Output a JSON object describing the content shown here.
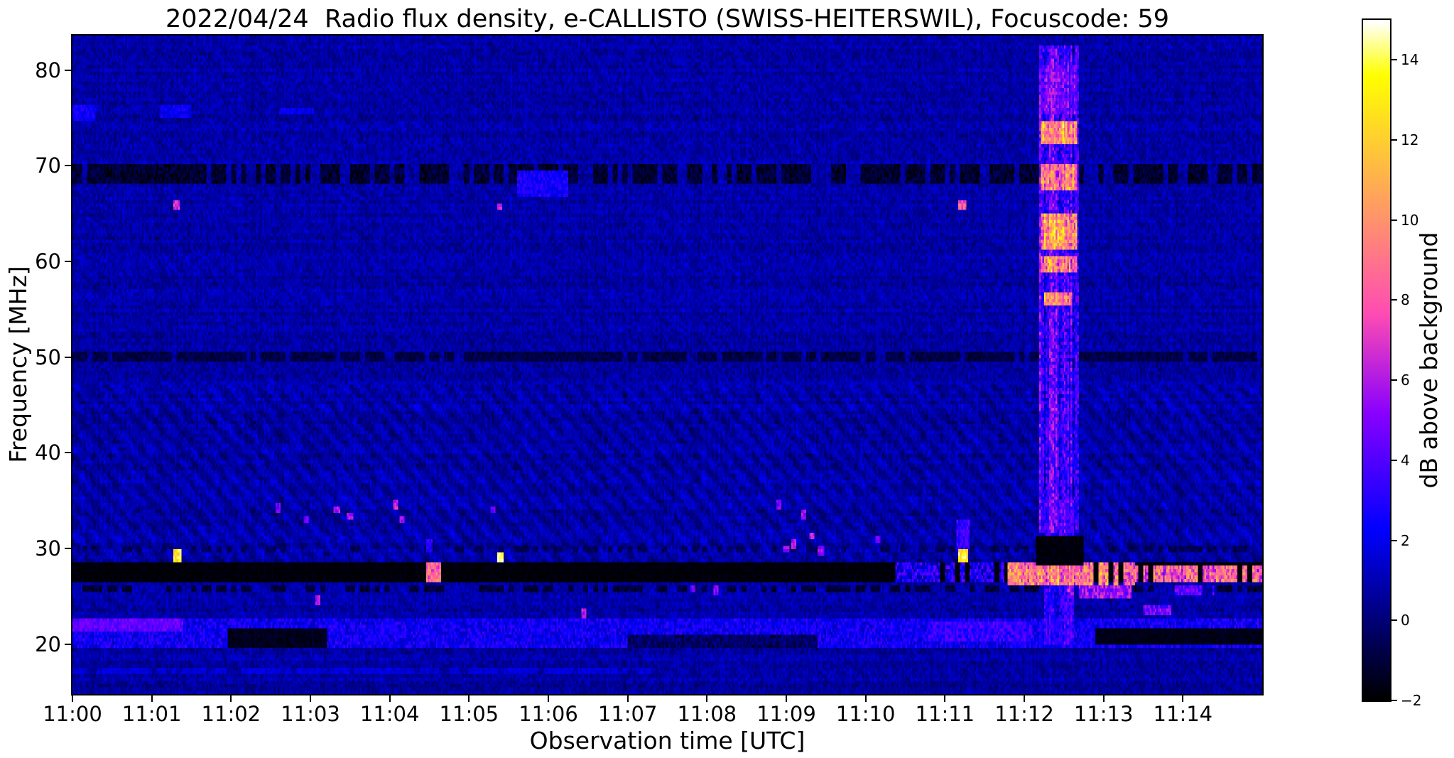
{
  "chart_data": {
    "type": "heatmap",
    "title": "2022/04/24  Radio flux density, e-CALLISTO (SWISS-HEITERSWIL), Focuscode: 59",
    "xlabel": "Observation time [UTC]",
    "ylabel": "Frequency [MHz]",
    "colorbar_label": "dB above background",
    "colormap": "gnuplot2",
    "x_range_minutes": [
      0,
      15
    ],
    "x_ticks": [
      "11:00",
      "11:01",
      "11:02",
      "11:03",
      "11:04",
      "11:05",
      "11:06",
      "11:07",
      "11:08",
      "11:09",
      "11:10",
      "11:11",
      "11:12",
      "11:13",
      "11:14"
    ],
    "y_range_mhz": [
      14.8,
      83.6
    ],
    "y_ticks": [
      80,
      70,
      60,
      50,
      40,
      30,
      20
    ],
    "value_range_db": [
      -2,
      15
    ],
    "colorbar_ticks": [
      {
        "value": 14,
        "label": "14"
      },
      {
        "value": 12,
        "label": "12"
      },
      {
        "value": 10,
        "label": "10"
      },
      {
        "value": 8,
        "label": "8"
      },
      {
        "value": 6,
        "label": "6"
      },
      {
        "value": 4,
        "label": "4"
      },
      {
        "value": 2,
        "label": "2"
      },
      {
        "value": 0,
        "label": "0"
      },
      {
        "value": -2,
        "label": "−2"
      }
    ],
    "grid": false,
    "background": {
      "base": 0.75,
      "noise": 1.4,
      "col_noise": 0.4,
      "row_noise": 0.5,
      "mottle": 0.45
    },
    "features": [
      {
        "name": "rfi-band-69MHz",
        "t0": 0,
        "t1": 15,
        "f0": 68.1,
        "f1": 70.3,
        "v": -1.2,
        "jitter": 0.9,
        "duty": 0.72
      },
      {
        "name": "rfi-band-50MHz",
        "t0": 0,
        "t1": 15,
        "f0": 49.5,
        "f1": 50.5,
        "v": -0.8,
        "jitter": 0.6,
        "duty": 0.8
      },
      {
        "name": "rfi-row-30MHz",
        "t0": 0,
        "t1": 15,
        "f0": 29.6,
        "f1": 30.4,
        "v": -0.5,
        "jitter": 0.6,
        "duty": 0.4
      },
      {
        "name": "rfi-row-26MHz",
        "t0": 0,
        "t1": 15,
        "f0": 25.3,
        "f1": 26.2,
        "v": -1.0,
        "jitter": 0.6,
        "duty": 0.5
      },
      {
        "name": "absorption-band-27MHz",
        "t0": 0,
        "t1": 15,
        "f0": 26.4,
        "f1": 28.6,
        "v": -1.85,
        "jitter": 0.2
      },
      {
        "name": "band-20-22MHz",
        "t0": 0,
        "t1": 15,
        "f0": 19.6,
        "f1": 22.6,
        "v": 2.3,
        "jitter": 1.3
      },
      {
        "name": "purple-patch-22MHz",
        "t0": 0,
        "t1": 1.4,
        "f0": 21.3,
        "f1": 22.7,
        "v": 4.3,
        "jitter": 1.0
      },
      {
        "t0": 1.95,
        "t1": 3.2,
        "f0": 19.6,
        "f1": 21.7,
        "v": -1.5,
        "jitter": 0.4
      },
      {
        "t0": 7.0,
        "t1": 9.4,
        "f0": 19.6,
        "f1": 20.9,
        "v": -0.3,
        "jitter": 1.0
      },
      {
        "t0": 10.8,
        "t1": 12.1,
        "f0": 20.2,
        "f1": 22.4,
        "v": 3.4,
        "jitter": 1.2
      },
      {
        "t0": 12.9,
        "t1": 15,
        "f0": 19.8,
        "f1": 21.7,
        "v": -1.6,
        "jitter": 0.3
      },
      {
        "name": "line-17MHz",
        "t0": 0,
        "t1": 7.3,
        "f0": 16.8,
        "f1": 17.4,
        "v": 1.6,
        "jitter": 0.5,
        "duty": 0.85
      },
      {
        "t0": 10.35,
        "t1": 11.8,
        "f0": 26.4,
        "f1": 28.5,
        "v": 2.5,
        "jitter": 2.2,
        "duty": 0.65
      },
      {
        "name": "bright-27MHz-late",
        "t0": 11.8,
        "t1": 13.4,
        "f0": 26.3,
        "f1": 28.5,
        "v": 9.0,
        "jitter": 2.6,
        "duty": 0.92,
        "colJitter": 1.5
      },
      {
        "t0": 13.4,
        "t1": 15,
        "f0": 26.4,
        "f1": 28.3,
        "v": 8.0,
        "jitter": 2.6,
        "duty": 0.8,
        "colJitter": 1.5
      },
      {
        "t0": 12.55,
        "t1": 13.35,
        "f0": 24.7,
        "f1": 26.3,
        "v": 5.5,
        "jitter": 1.8,
        "duty": 0.8
      },
      {
        "t0": 13.9,
        "t1": 14.4,
        "f0": 25.0,
        "f1": 26.3,
        "v": 4.0,
        "jitter": 1.5,
        "duty": 0.6
      },
      {
        "t0": 13.45,
        "t1": 13.85,
        "f0": 23.0,
        "f1": 24.2,
        "v": 4.5,
        "jitter": 1.5,
        "duty": 0.6
      },
      {
        "name": "radio-burst-fill",
        "t0": 12.18,
        "t1": 12.68,
        "f0": 31.5,
        "f1": 82.5,
        "v": 3.2,
        "jitter": 2.0,
        "colJitter": 1.8,
        "mode": "max"
      },
      {
        "t0": 12.2,
        "t1": 12.66,
        "f0": 75.5,
        "f1": 80.6,
        "v": 4.2,
        "jitter": 1.6,
        "colJitter": 1.5,
        "mode": "max"
      },
      {
        "t0": 12.2,
        "t1": 12.66,
        "f0": 72.4,
        "f1": 74.6,
        "v": 10.5,
        "jitter": 2.4,
        "colJitter": 2.0,
        "mode": "max"
      },
      {
        "t0": 12.2,
        "t1": 12.66,
        "f0": 67.5,
        "f1": 70.3,
        "v": 9.0,
        "jitter": 2.6,
        "colJitter": 2.0,
        "mode": "max"
      },
      {
        "t0": 12.2,
        "t1": 12.66,
        "f0": 61.2,
        "f1": 64.9,
        "v": 10.0,
        "jitter": 2.6,
        "colJitter": 2.2,
        "mode": "max"
      },
      {
        "t0": 12.2,
        "t1": 12.66,
        "f0": 58.8,
        "f1": 60.7,
        "v": 9.0,
        "jitter": 2.4,
        "colJitter": 2.0,
        "mode": "max"
      },
      {
        "t0": 12.25,
        "t1": 12.6,
        "f0": 55.3,
        "f1": 56.7,
        "v": 9.5,
        "jitter": 2.2,
        "colJitter": 1.8,
        "mode": "max"
      },
      {
        "t0": 12.25,
        "t1": 12.62,
        "f0": 31.3,
        "f1": 35.0,
        "v": 3.6,
        "jitter": 1.4,
        "colJitter": 1.2,
        "mode": "max"
      },
      {
        "t0": 12.25,
        "t1": 12.62,
        "f0": 19.8,
        "f1": 26.4,
        "v": 3.0,
        "jitter": 1.5,
        "colJitter": 1.2,
        "mode": "max"
      },
      {
        "name": "burst-absorption-29MHz",
        "t0": 12.15,
        "t1": 12.75,
        "f0": 28.3,
        "f1": 31.3,
        "v": -1.8,
        "jitter": 0.3
      },
      {
        "t0": 1.27,
        "t1": 1.38,
        "f0": 28.6,
        "f1": 29.9,
        "v": 13.0,
        "jitter": 1.5
      },
      {
        "t0": 1.27,
        "t1": 1.36,
        "f0": 65.2,
        "f1": 66.3,
        "v": 7.0,
        "jitter": 1.5
      },
      {
        "t0": 5.35,
        "t1": 5.43,
        "f0": 28.5,
        "f1": 29.7,
        "v": 14.5,
        "jitter": 0.8
      },
      {
        "t0": 5.35,
        "t1": 5.42,
        "f0": 65.4,
        "f1": 66.1,
        "v": 6.0,
        "jitter": 1.2
      },
      {
        "t0": 11.17,
        "t1": 11.3,
        "f0": 28.5,
        "f1": 30.1,
        "v": 13.0,
        "jitter": 1.8
      },
      {
        "t0": 11.17,
        "t1": 11.28,
        "f0": 65.2,
        "f1": 66.5,
        "v": 8.0,
        "jitter": 1.8
      },
      {
        "t0": 11.15,
        "t1": 11.32,
        "f0": 30.1,
        "f1": 33.0,
        "v": 3.5,
        "jitter": 1.2,
        "mode": "max"
      },
      {
        "t0": 4.46,
        "t1": 4.64,
        "f0": 26.5,
        "f1": 28.4,
        "v": 8.5,
        "jitter": 2.0
      },
      {
        "t0": 4.45,
        "t1": 4.55,
        "f0": 29.5,
        "f1": 31.0,
        "v": 3.0,
        "jitter": 1.0,
        "mode": "max"
      },
      {
        "t0": 0,
        "t1": 0.3,
        "f0": 74.6,
        "f1": 76.4,
        "v": 2.4,
        "jitter": 0.8,
        "mode": "max"
      },
      {
        "t0": 1.1,
        "t1": 1.5,
        "f0": 75.0,
        "f1": 76.3,
        "v": 2.2,
        "jitter": 0.8,
        "mode": "max"
      },
      {
        "t0": 2.6,
        "t1": 3.05,
        "f0": 75.3,
        "f1": 76.2,
        "v": 2.0,
        "jitter": 0.7,
        "mode": "max"
      },
      {
        "t0": 5.6,
        "t1": 6.25,
        "f0": 66.8,
        "f1": 69.5,
        "v": 2.6,
        "jitter": 1.0,
        "mode": "max"
      }
    ],
    "dots": [
      [
        3.33,
        34.0,
        6
      ],
      [
        3.5,
        33.4,
        5.5
      ],
      [
        4.07,
        34.6,
        6.5
      ],
      [
        4.15,
        33.0,
        5.5
      ],
      [
        8.12,
        25.6,
        5
      ],
      [
        9.1,
        30.4,
        6
      ],
      [
        9.22,
        33.6,
        5.5
      ],
      [
        9.32,
        31.3,
        6.5
      ],
      [
        9.44,
        29.7,
        5.5
      ],
      [
        6.45,
        23.3,
        6
      ],
      [
        3.1,
        24.7,
        6
      ],
      [
        7.82,
        25.8,
        4.5
      ],
      [
        2.6,
        34.3,
        4.5
      ],
      [
        5.3,
        34.0,
        4.5
      ],
      [
        8.9,
        34.5,
        5
      ],
      [
        9.0,
        29.9,
        5.5
      ],
      [
        10.15,
        31.0,
        4.5
      ],
      [
        2.95,
        33.0,
        4.5
      ]
    ]
  }
}
